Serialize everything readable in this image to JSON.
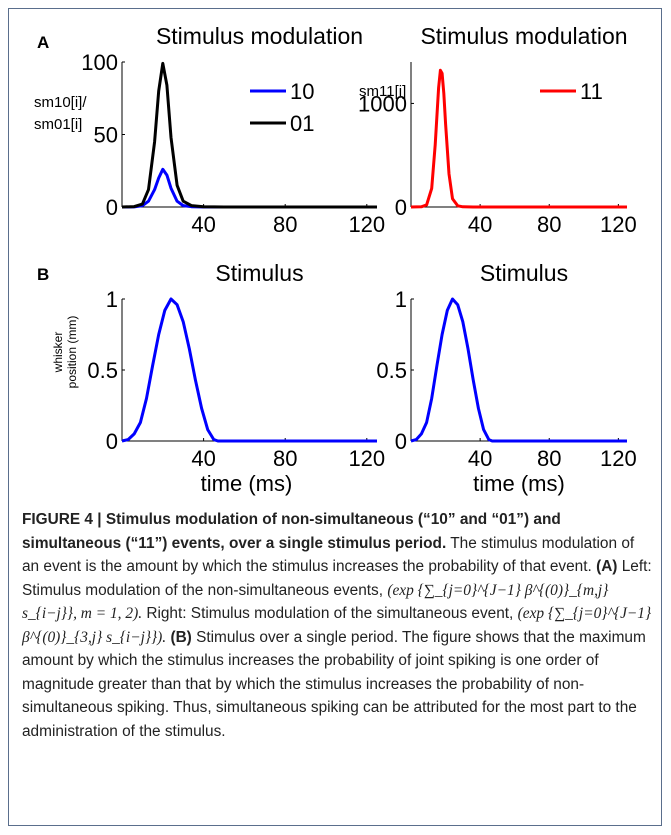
{
  "chart_data": [
    {
      "panel": "A",
      "type": "line",
      "title": "Stimulus modulation",
      "ylabel": [
        "sm10[i]/",
        "sm01[i]"
      ],
      "xlim": [
        0,
        125
      ],
      "ylim": [
        0,
        100
      ],
      "xticks": [
        "40",
        "80",
        "120"
      ],
      "yticks": [
        "0",
        "50",
        "100"
      ],
      "legend_position": "top-right",
      "series": [
        {
          "name": "10",
          "color": "#0000ff",
          "x": [
            0,
            6,
            10,
            13,
            16,
            18,
            20,
            22,
            24,
            27,
            30,
            34,
            40,
            50,
            125
          ],
          "y": [
            0,
            0.1,
            1,
            4,
            12,
            20,
            26,
            22,
            13,
            4,
            1,
            0.2,
            0,
            0,
            0
          ]
        },
        {
          "name": "01",
          "color": "#000000",
          "x": [
            0,
            6,
            10,
            13,
            16,
            18,
            20,
            22,
            24,
            27,
            30,
            34,
            40,
            50,
            125
          ],
          "y": [
            0,
            0.3,
            2,
            12,
            45,
            80,
            99,
            84,
            48,
            15,
            4,
            1,
            0.2,
            0,
            0
          ]
        }
      ]
    },
    {
      "panel": "A",
      "type": "line",
      "title": "Stimulus modulation",
      "ylabel": "sm11[i]",
      "xlim": [
        0,
        125
      ],
      "ylim": [
        0,
        1400
      ],
      "xticks": [
        "40",
        "80",
        "120"
      ],
      "yticks": [
        "0",
        "1000"
      ],
      "legend_position": "top-right",
      "series": [
        {
          "name": "11",
          "color": "#ff0000",
          "x": [
            0,
            6,
            9,
            12,
            14,
            16,
            17,
            18,
            19,
            20,
            22,
            24,
            27,
            30,
            36,
            125
          ],
          "y": [
            0,
            2,
            20,
            180,
            600,
            1150,
            1320,
            1290,
            1100,
            800,
            320,
            80,
            12,
            2,
            0,
            0
          ]
        }
      ]
    },
    {
      "panel": "B",
      "type": "line",
      "title": "Stimulus",
      "xlabel": "time (ms)",
      "ylabel": [
        "whisker",
        "position (mm)"
      ],
      "xlim": [
        0,
        125
      ],
      "ylim": [
        0,
        1
      ],
      "xticks": [
        "40",
        "80",
        "120"
      ],
      "yticks": [
        "0",
        "0.5",
        "1"
      ],
      "series": [
        {
          "name": "",
          "color": "#0000ff",
          "x": [
            0,
            3,
            6,
            9,
            12,
            15,
            18,
            21,
            24,
            27,
            30,
            33,
            36,
            39,
            42,
            45,
            47,
            50,
            125
          ],
          "y": [
            0,
            0.01,
            0.05,
            0.13,
            0.3,
            0.53,
            0.75,
            0.92,
            1.0,
            0.96,
            0.84,
            0.65,
            0.43,
            0.23,
            0.08,
            0.01,
            0,
            0,
            0
          ]
        }
      ]
    },
    {
      "panel": "B",
      "type": "line",
      "title": "Stimulus",
      "xlabel": "time (ms)",
      "xlim": [
        0,
        125
      ],
      "ylim": [
        0,
        1
      ],
      "xticks": [
        "40",
        "80",
        "120"
      ],
      "yticks": [
        "0",
        "0.5",
        "1"
      ],
      "series": [
        {
          "name": "",
          "color": "#0000ff",
          "x": [
            0,
            3,
            6,
            9,
            12,
            15,
            18,
            21,
            24,
            27,
            30,
            33,
            36,
            39,
            42,
            45,
            47,
            50,
            125
          ],
          "y": [
            0,
            0.01,
            0.05,
            0.13,
            0.3,
            0.53,
            0.75,
            0.92,
            1.0,
            0.96,
            0.84,
            0.65,
            0.43,
            0.23,
            0.08,
            0.01,
            0,
            0,
            0
          ]
        }
      ]
    }
  ],
  "caption": {
    "figure_label": "FIGURE 4 | Stimulus modulation of non-simultaneous (“10” and “01”) and simultaneous (“11”) events, over a single stimulus period.",
    "intro": "The stimulus modulation of an event is the amount by which the stimulus increases the probability of that event.",
    "part_a_label": "(A)",
    "part_a_left": "Left: Stimulus modulation of the non-simultaneous events,",
    "formula_left": "(exp {∑_{j=0}^{J−1} β^{(0)}_{m,j} s_{i−j}}, m = 1, 2).",
    "part_a_right": "Right: Stimulus modulation of the simultaneous event,",
    "formula_right": "(exp {∑_{j=0}^{J−1} β^{(0)}_{3,j} s_{i−j}}).",
    "part_b_label": "(B)",
    "part_b": "Stimulus over a single period. The figure shows that the maximum amount by which the stimulus increases the probability of joint spiking is one order of magnitude greater than that by which the stimulus increases the probability of non-simultaneous spiking. Thus, simultaneous spiking can be attributed for the most part to the administration of the stimulus."
  }
}
